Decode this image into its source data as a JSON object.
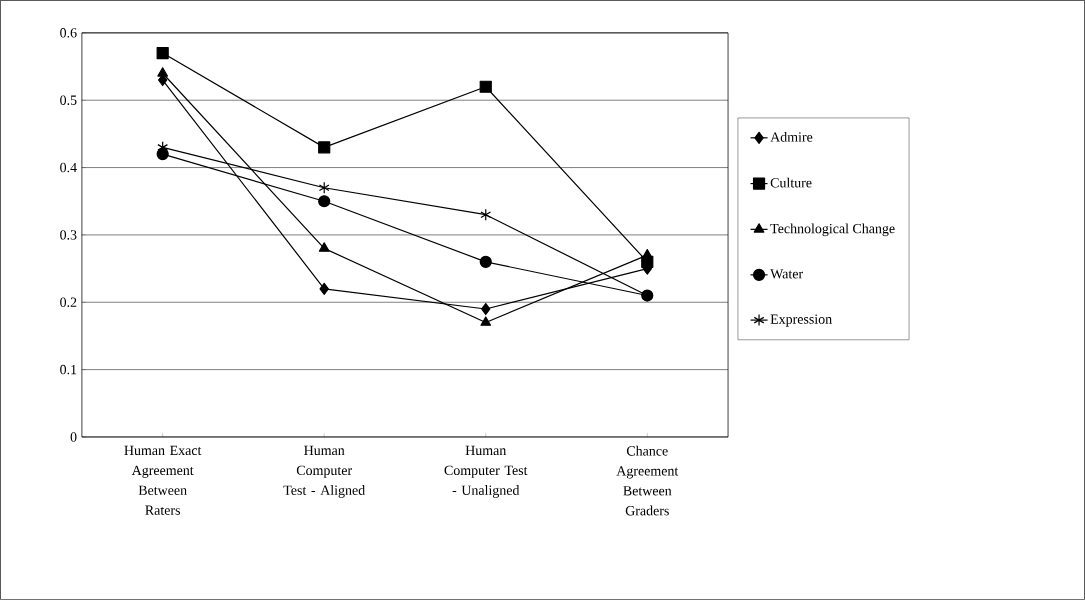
{
  "chart_data": {
    "type": "line",
    "categories": [
      "Human Exact Agreement Between Raters",
      "Human Computer Test - Aligned",
      "Human Computer Test - Unaligned",
      "Chance Agreement Between Graders"
    ],
    "series": [
      {
        "name": "Admire",
        "color": "#000000",
        "marker": "diamond",
        "values": [
          0.53,
          0.22,
          0.19,
          0.25
        ]
      },
      {
        "name": "Culture",
        "color": "#000000",
        "marker": "square",
        "values": [
          0.57,
          0.43,
          0.52,
          0.26
        ]
      },
      {
        "name": "Technological Change",
        "color": "#000000",
        "marker": "triangle",
        "values": [
          0.54,
          0.28,
          0.17,
          0.27
        ]
      },
      {
        "name": "Water",
        "color": "#000000",
        "marker": "circle",
        "values": [
          0.42,
          0.35,
          0.26,
          0.21
        ]
      },
      {
        "name": "Expression",
        "color": "#000000",
        "marker": "cross",
        "values": [
          0.43,
          0.37,
          0.33,
          0.21
        ]
      }
    ],
    "ylim": [
      0,
      0.6
    ],
    "yticks": [
      0,
      0.1,
      0.2,
      0.3,
      0.4,
      0.5,
      0.6
    ],
    "grid": "y",
    "legend": "right",
    "line_style": "solid"
  }
}
